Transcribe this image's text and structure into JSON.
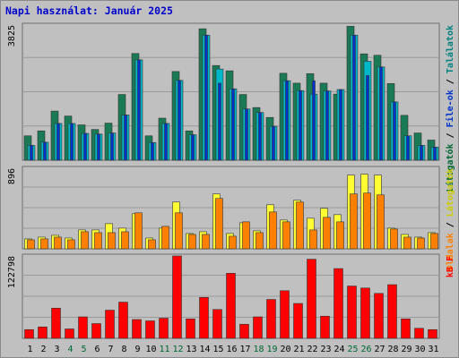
{
  "chart_data": {
    "type": "bar",
    "title": "Napi használat: Január 2025",
    "x": [
      1,
      2,
      3,
      4,
      5,
      6,
      7,
      8,
      9,
      10,
      11,
      12,
      13,
      14,
      15,
      16,
      17,
      18,
      19,
      20,
      21,
      22,
      23,
      24,
      25,
      26,
      27,
      28,
      29,
      30,
      31
    ],
    "x_label_colors": {
      "weekday": "#000000",
      "weekend": "#006633"
    },
    "weekend_days": [
      4,
      5,
      11,
      12,
      18,
      19,
      25,
      26
    ],
    "panels": [
      {
        "id": "top",
        "ymax_label": "3825",
        "ymax": 3825,
        "right_label_parts": [
          {
            "text": "Látogatók",
            "color": "#006633"
          },
          {
            "text": " / ",
            "color": "#000000"
          },
          {
            "text": "File-ok",
            "color": "#0033cc"
          },
          {
            "text": " / ",
            "color": "#000000"
          },
          {
            "text": "Találatok",
            "color": "#008080"
          }
        ],
        "series": [
          {
            "name": "Látogatók",
            "color": "#1a7a55",
            "values": [
              690,
              830,
              1390,
              1250,
              1000,
              870,
              1050,
              1860,
              3020,
              690,
              1190,
              2510,
              830,
              3720,
              2680,
              2530,
              1860,
              1490,
              1210,
              2460,
              2180,
              2450,
              2180,
              1870,
              3790,
              3010,
              2970,
              2170,
              1270,
              770,
              570
            ]
          },
          {
            "name": "Találatok",
            "color": "#00b8c8",
            "values": [
              420,
              510,
              1040,
              1040,
              760,
              740,
              770,
              1280,
              2840,
              500,
              1040,
              2260,
              720,
              3540,
              2580,
              2020,
              1450,
              1350,
              960,
              2250,
              1970,
              1870,
              1960,
              2000,
              3540,
              2800,
              2640,
              1650,
              690,
              420,
              370
            ]
          },
          {
            "name": "File-ok",
            "color": "#0033cc",
            "values": [
              420,
              510,
              1040,
              1040,
              760,
              740,
              770,
              1280,
              2840,
              500,
              1040,
              2260,
              720,
              3540,
              2180,
              2020,
              1450,
              1350,
              960,
              2250,
              1970,
              2250,
              1960,
              2000,
              3540,
              2400,
              2640,
              1650,
              690,
              420,
              370
            ]
          }
        ]
      },
      {
        "id": "middle",
        "ymax_label": "896",
        "ymax": 896,
        "right_label_parts": [
          {
            "text": "Oldalak",
            "color": "#ff8000"
          },
          {
            "text": " / ",
            "color": "#000000"
          },
          {
            "text": "Látogatók",
            "color": "#cccc00"
          }
        ],
        "series": [
          {
            "name": "Látogatók",
            "color": "#ffff33",
            "values": [
              110,
              130,
              150,
              120,
              210,
              210,
              280,
              230,
              390,
              120,
              230,
              520,
              170,
              190,
              610,
              170,
              290,
              200,
              490,
              320,
              540,
              340,
              450,
              380,
              820,
              830,
              820,
              230,
              160,
              130,
              180
            ]
          },
          {
            "name": "Oldalak",
            "color": "#ff8000",
            "values": [
              100,
              110,
              130,
              100,
              190,
              180,
              180,
              190,
              400,
              100,
              250,
              400,
              160,
              160,
              560,
              140,
              300,
              180,
              410,
              300,
              520,
              210,
              350,
              300,
              610,
              620,
              600,
              220,
              130,
              120,
              170
            ]
          }
        ]
      },
      {
        "id": "bottom",
        "ymax_label": "122798",
        "ymax": 122798,
        "right_label_parts": [
          {
            "text": "kB F",
            "color": "#ff0000"
          }
        ],
        "series": [
          {
            "name": "kB F",
            "color": "#ff0000",
            "values": [
              13000,
              17000,
              45000,
              14000,
              32000,
              22000,
              42000,
              54000,
              28000,
              26000,
              30000,
              122800,
              29000,
              61000,
              43000,
              97000,
              21000,
              32000,
              58000,
              71000,
              52000,
              118000,
              33000,
              104000,
              78000,
              75000,
              67000,
              80000,
              29000,
              15000,
              13000
            ]
          }
        ]
      }
    ]
  }
}
